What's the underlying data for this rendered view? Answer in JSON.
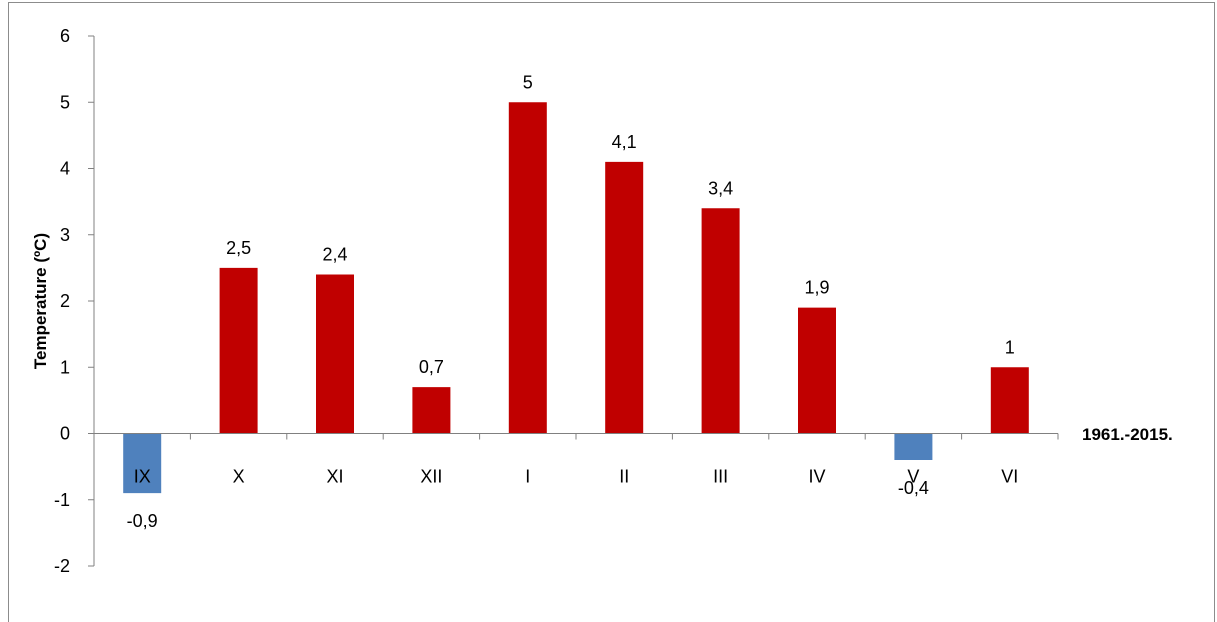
{
  "chart_data": {
    "type": "bar",
    "categories": [
      "IX",
      "X",
      "XI",
      "XII",
      "I",
      "II",
      "III",
      "IV",
      "V",
      "VI"
    ],
    "values": [
      -0.9,
      2.5,
      2.4,
      0.7,
      5,
      4.1,
      3.4,
      1.9,
      -0.4,
      1
    ],
    "data_labels": [
      "-0,9",
      "2,5",
      "2,4",
      "0,7",
      "5",
      "4,1",
      "3,4",
      "1,9",
      "-0,4",
      "1"
    ],
    "ylabel": "Temperature (ºC)",
    "xlabel": "1961.-2015.",
    "ylim": [
      -2,
      6
    ],
    "yticks": [
      -2,
      -1,
      0,
      1,
      2,
      3,
      4,
      5,
      6
    ],
    "colors": {
      "positive": "#c00000",
      "negative": "#4f81bd",
      "axis": "#808080"
    },
    "grid": false,
    "legend": "none"
  }
}
